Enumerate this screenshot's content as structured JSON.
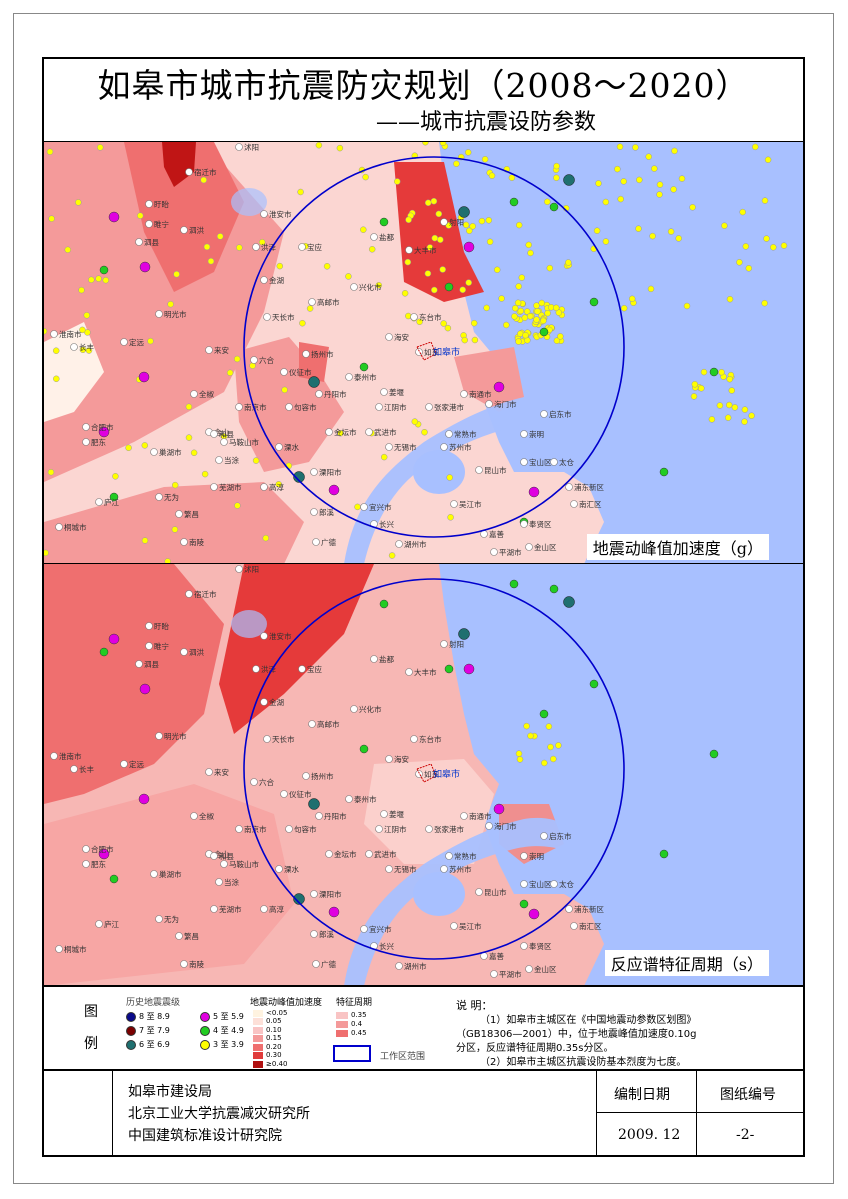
{
  "title": "如皋市城市抗震防灾规划（2008～2020）",
  "subtitle": "——城市抗震设防参数",
  "maps": {
    "top_label": "地震动峰值加速度（g）",
    "bottom_label": "反应谱特征周期（s）",
    "city_label": "如皋市",
    "place_labels": [
      "沭阳",
      "宿迁市",
      "泗洪",
      "淮安市",
      "洪泽",
      "宝应",
      "金湖",
      "天长市",
      "高邮市",
      "兴化市",
      "大丰市",
      "东台市",
      "海安",
      "如东",
      "来安",
      "六合",
      "仪征市",
      "扬州市",
      "泰州市",
      "姜堰",
      "南通市",
      "海门市",
      "启东市",
      "全椒",
      "南京市",
      "句容市",
      "丹阳市",
      "江阴市",
      "张家港市",
      "常熟市",
      "崇明",
      "马鞍山市",
      "金坛市",
      "武进市",
      "无锡市",
      "苏州市",
      "昆山市",
      "太仓",
      "宝山区",
      "浦东新区",
      "南汇区",
      "芜湖市",
      "宜兴市",
      "吴江市",
      "长兴",
      "湖州市",
      "嘉善",
      "平湖市",
      "金山区",
      "奉贤区",
      "明光市",
      "定远",
      "肥东",
      "合肥市",
      "含山",
      "和县",
      "当涂",
      "高淳",
      "溧水",
      "溧阳市",
      "郎溪",
      "广德",
      "繁昌",
      "南陵",
      "无为",
      "庐江",
      "桐城市",
      "淮南市",
      "长丰",
      "巢湖市",
      "盱眙",
      "睢宁",
      "泗县",
      "盐都",
      "射阳"
    ]
  },
  "legend": {
    "title": "图\n例",
    "title_top": "图",
    "title_bottom": "例",
    "hist_title": "历史地震震级",
    "mag_items": [
      {
        "label": "8 至 8.9",
        "color": "#0a0a8a"
      },
      {
        "label": "7 至 7.9",
        "color": "#7a0000"
      },
      {
        "label": "6 至 6.9",
        "color": "#1f6f6f"
      },
      {
        "label": "5 至 5.9",
        "color": "#e000e0"
      },
      {
        "label": "4 至 4.9",
        "color": "#22cc22"
      },
      {
        "label": "3 至 3.9",
        "color": "#ffff00"
      }
    ],
    "pga_title": "地震动峰值加速度",
    "pga_items": [
      {
        "label": "<0.05",
        "color": "#fff3e0"
      },
      {
        "label": "0.05",
        "color": "#fde0d8"
      },
      {
        "label": "0.10",
        "color": "#f9c4c4"
      },
      {
        "label": "0.15",
        "color": "#f49a9a"
      },
      {
        "label": "0.20",
        "color": "#ef6f6f"
      },
      {
        "label": "0.30",
        "color": "#e03a3a"
      },
      {
        "label": "≥0.40",
        "color": "#b01010"
      }
    ],
    "period_title": "特征周期",
    "period_items": [
      {
        "label": "0.35",
        "color": "#f9c4c4"
      },
      {
        "label": "0.4",
        "color": "#f49a9a"
      },
      {
        "label": "0.45",
        "color": "#ef6f6f"
      }
    ],
    "workzone_label": "工作区范围"
  },
  "notes": {
    "heading": "说  明：",
    "line1": "（1）如皋市主城区在《中国地震动参数区划图》",
    "line2": "（GB18306—2001）中，位于地震峰值加速度0.10g",
    "line3": "分区，反应谱特征周期0.35s分区。",
    "line4": "（2）如皋市主城区抗震设防基本烈度为七度。"
  },
  "footer": {
    "org1": "如皋市建设局",
    "org2": "北京工业大学抗震减灾研究所",
    "org3": "中国建筑标准设计研究院",
    "date_label": "编制日期",
    "date_value": "2009. 12",
    "drawing_no_label": "图纸编号",
    "drawing_no_value": "-2-"
  },
  "colors": {
    "sea": "#a8c0ff",
    "circle": "#0000cc"
  }
}
